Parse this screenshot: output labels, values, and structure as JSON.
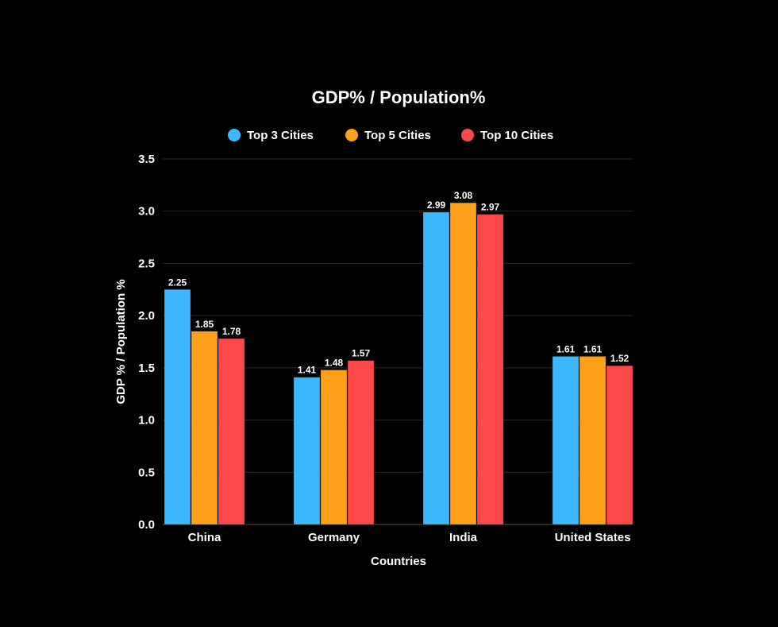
{
  "chart_data": {
    "type": "bar",
    "title": "GDP% / Population%",
    "xlabel": "Countries",
    "ylabel": "GDP % / Population %",
    "categories": [
      "China",
      "Germany",
      "India",
      "United States"
    ],
    "series": [
      {
        "name": "Top 3 Cities",
        "color": "#3BB8FF",
        "values": [
          2.25,
          1.41,
          2.99,
          1.61
        ]
      },
      {
        "name": "Top 5 Cities",
        "color": "#FFA01A",
        "values": [
          1.85,
          1.48,
          3.08,
          1.61
        ]
      },
      {
        "name": "Top 10 Cities",
        "color": "#FF4848",
        "values": [
          1.78,
          1.57,
          2.97,
          1.52
        ]
      }
    ],
    "ylim": [
      0,
      3.5
    ],
    "yticks": [
      "0.0",
      "0.5",
      "1.0",
      "1.5",
      "2.0",
      "2.5",
      "3.0",
      "3.5"
    ],
    "grid": true,
    "legend": "top-center",
    "data_labels": true
  }
}
